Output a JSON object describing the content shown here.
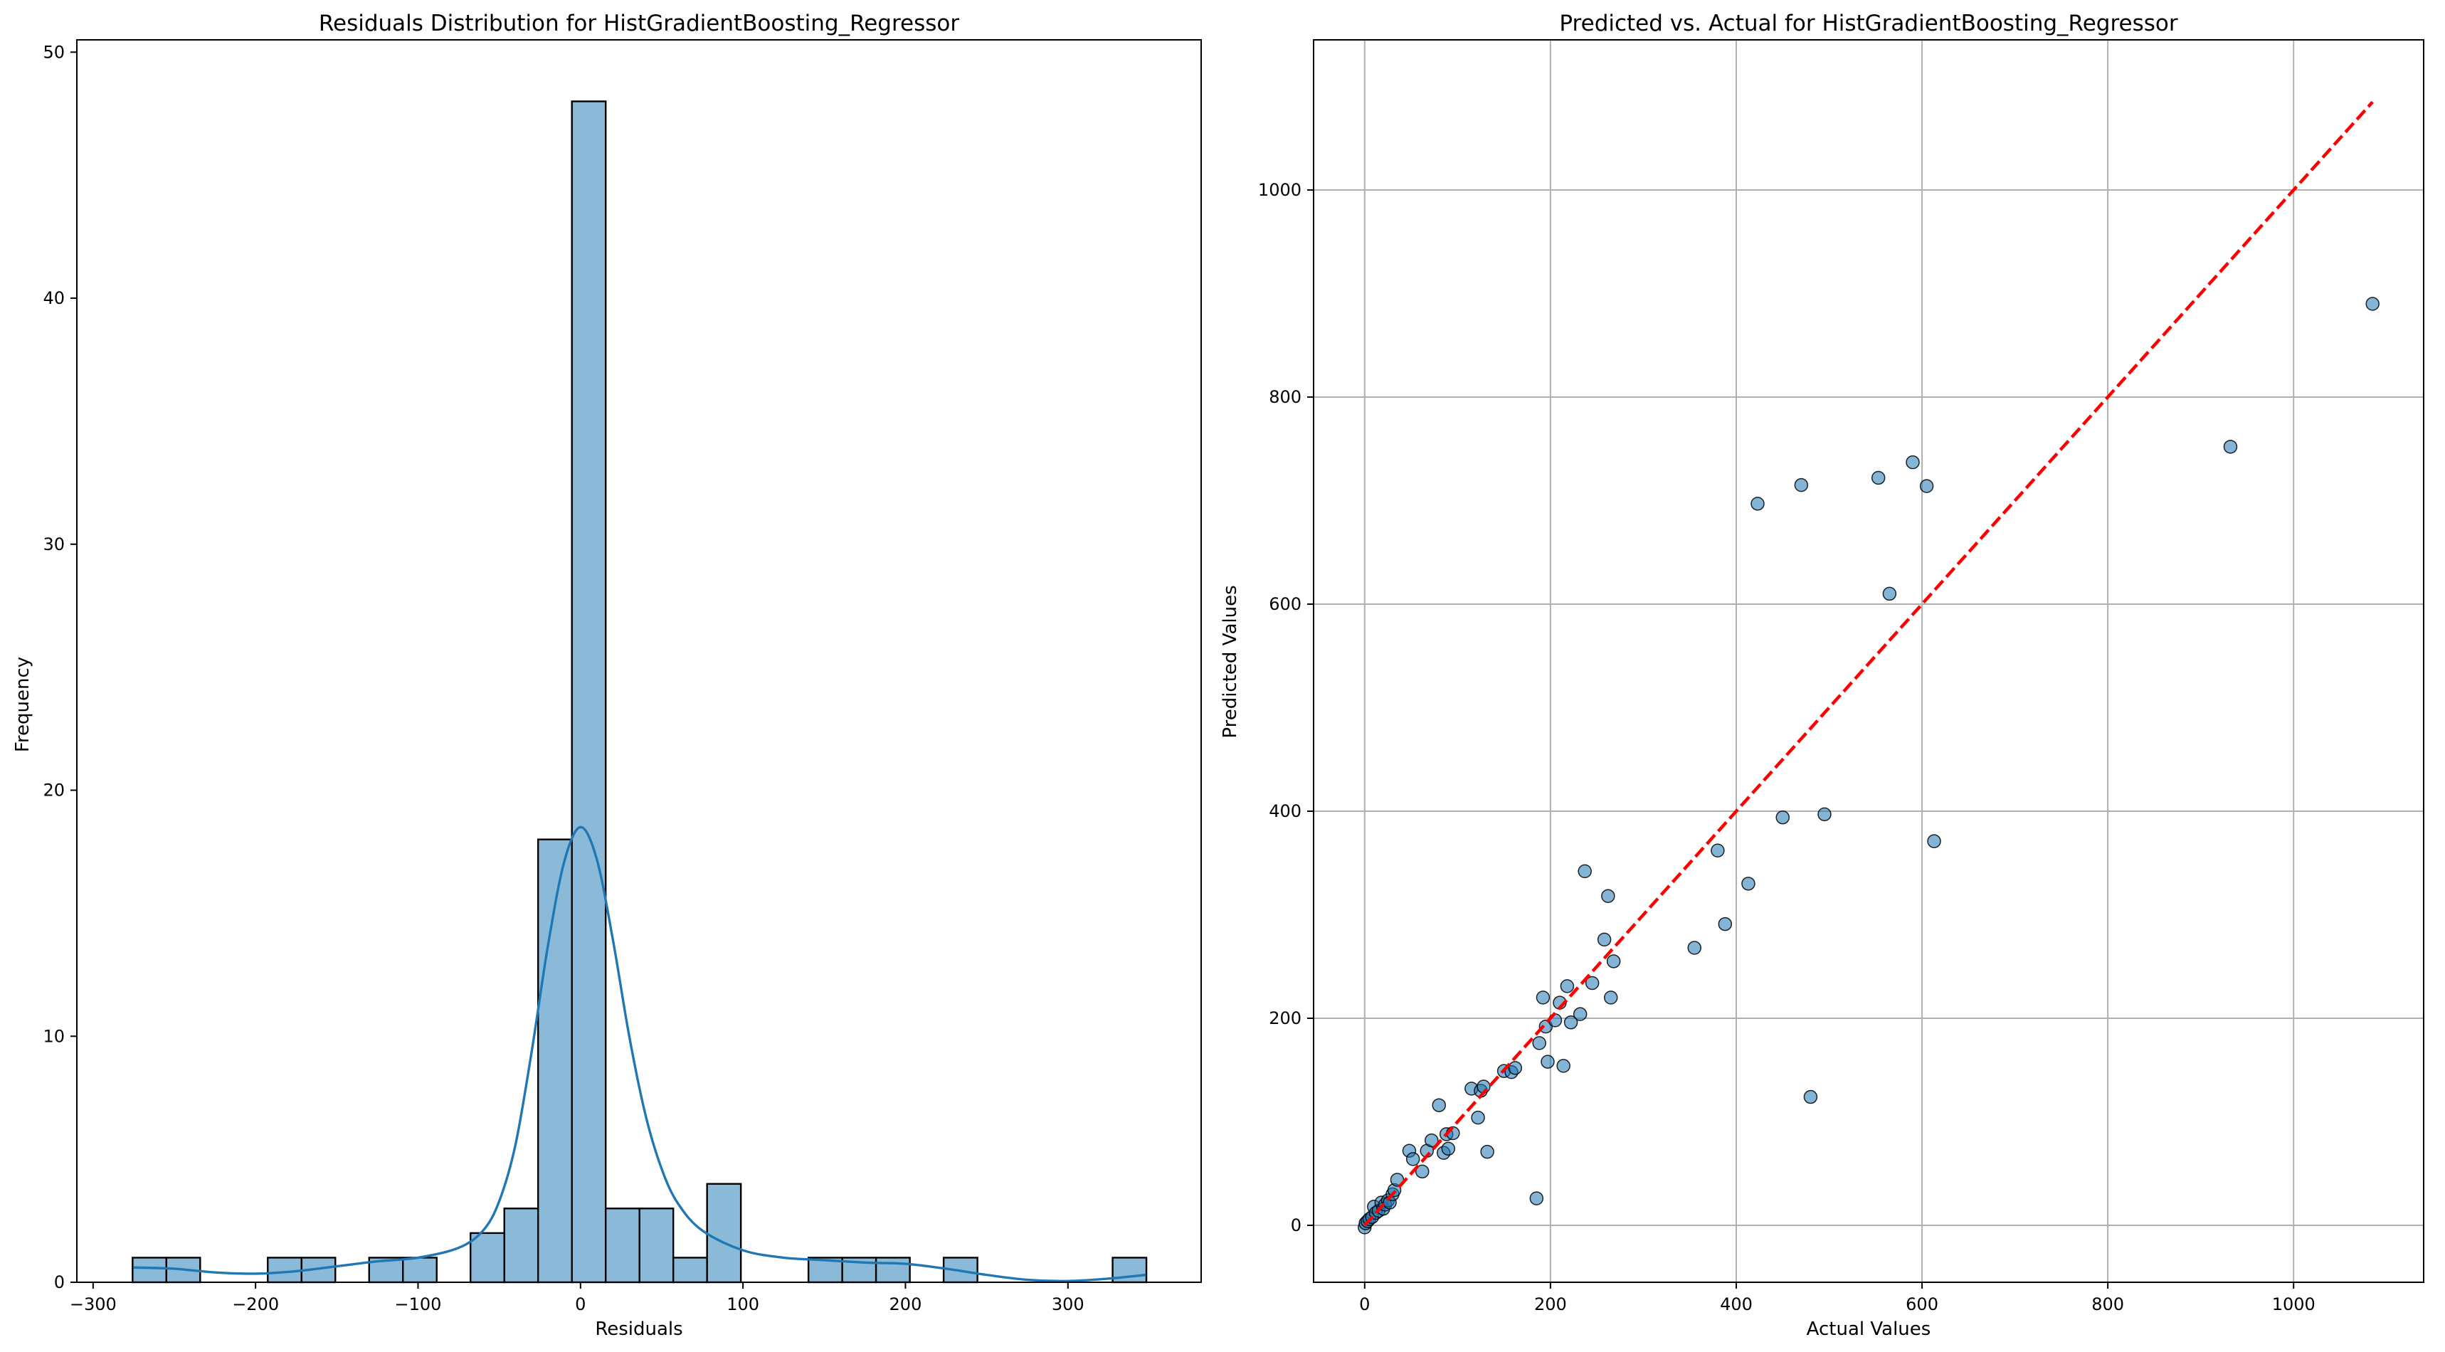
{
  "chart_data": [
    {
      "type": "bar",
      "title": "Residuals Distribution for HistGradientBoosting_Regressor",
      "xlabel": "Residuals",
      "ylabel": "Frequency",
      "xlim": [
        -310,
        382
      ],
      "ylim": [
        0,
        50.5
      ],
      "x_ticks": [
        -300,
        -200,
        -100,
        0,
        100,
        200,
        300
      ],
      "y_ticks": [
        0,
        10,
        20,
        30,
        40,
        50
      ],
      "grid": false,
      "bin_edges": [
        -275.7,
        -254.9,
        -234.1,
        -213.3,
        -192.5,
        -171.7,
        -150.9,
        -130.1,
        -109.3,
        -88.5,
        -67.7,
        -46.9,
        -26.1,
        -5.3,
        15.5,
        36.3,
        57.1,
        77.9,
        98.7,
        119.5,
        140.3,
        161.1,
        181.9,
        202.7,
        223.5,
        244.3,
        265.1,
        285.9,
        306.7,
        327.5,
        348.3
      ],
      "counts": [
        1,
        1,
        0,
        0,
        1,
        1,
        0,
        1,
        1,
        0,
        2,
        3,
        18,
        48,
        3,
        3,
        1,
        4,
        0,
        0,
        1,
        1,
        1,
        0,
        1,
        0,
        0,
        0,
        0,
        1
      ],
      "bar_color": "#8bbad9",
      "kde": {
        "color": "#1f77b4",
        "x": [
          -275,
          -250,
          -225,
          -200,
          -175,
          -150,
          -125,
          -100,
          -75,
          -60,
          -50,
          -40,
          -30,
          -20,
          -10,
          0,
          10,
          20,
          30,
          40,
          50,
          60,
          75,
          100,
          125,
          150,
          175,
          200,
          225,
          250,
          275,
          300,
          325,
          348
        ],
        "y": [
          0.6,
          0.55,
          0.4,
          0.35,
          0.45,
          0.65,
          0.85,
          1.0,
          1.4,
          2.1,
          3.3,
          5.6,
          9.4,
          13.7,
          17.1,
          18.5,
          17.2,
          13.9,
          10.0,
          6.8,
          4.6,
          3.2,
          2.1,
          1.3,
          1.0,
          0.9,
          0.8,
          0.75,
          0.55,
          0.3,
          0.1,
          0.05,
          0.15,
          0.3
        ]
      }
    },
    {
      "type": "scatter",
      "title": "Predicted vs. Actual for HistGradientBoosting_Regressor",
      "xlabel": "Actual Values",
      "ylabel": "Predicted Values",
      "xlim": [
        -55,
        1140
      ],
      "ylim": [
        -55,
        1145
      ],
      "x_ticks": [
        0,
        200,
        400,
        600,
        800,
        1000
      ],
      "y_ticks": [
        0,
        200,
        400,
        600,
        800,
        1000
      ],
      "grid": true,
      "point_color": "#1f77b4",
      "reference_line": {
        "x": [
          0,
          1085
        ],
        "y": [
          0,
          1085
        ],
        "color": "#ff0000",
        "style": "dashed"
      },
      "points": [
        [
          0,
          -2
        ],
        [
          1,
          2
        ],
        [
          3,
          4
        ],
        [
          5,
          6
        ],
        [
          8,
          8
        ],
        [
          10,
          18
        ],
        [
          12,
          12
        ],
        [
          15,
          14
        ],
        [
          18,
          22
        ],
        [
          20,
          16
        ],
        [
          22,
          20
        ],
        [
          25,
          24
        ],
        [
          27,
          22
        ],
        [
          30,
          30
        ],
        [
          32,
          34
        ],
        [
          35,
          44
        ],
        [
          48,
          72
        ],
        [
          52,
          64
        ],
        [
          62,
          52
        ],
        [
          67,
          72
        ],
        [
          72,
          82
        ],
        [
          80,
          116
        ],
        [
          85,
          70
        ],
        [
          88,
          88
        ],
        [
          90,
          74
        ],
        [
          95,
          89
        ],
        [
          115,
          132
        ],
        [
          122,
          104
        ],
        [
          125,
          130
        ],
        [
          128,
          134
        ],
        [
          132,
          71
        ],
        [
          150,
          149
        ],
        [
          158,
          148
        ],
        [
          162,
          152
        ],
        [
          185,
          26
        ],
        [
          188,
          176
        ],
        [
          192,
          220
        ],
        [
          195,
          192
        ],
        [
          197,
          158
        ],
        [
          205,
          198
        ],
        [
          210,
          215
        ],
        [
          214,
          154
        ],
        [
          218,
          231
        ],
        [
          222,
          196
        ],
        [
          232,
          204
        ],
        [
          237,
          342
        ],
        [
          245,
          234
        ],
        [
          258,
          276
        ],
        [
          262,
          318
        ],
        [
          265,
          220
        ],
        [
          268,
          255
        ],
        [
          355,
          268
        ],
        [
          380,
          362
        ],
        [
          388,
          291
        ],
        [
          413,
          330
        ],
        [
          423,
          697
        ],
        [
          450,
          394
        ],
        [
          470,
          715
        ],
        [
          480,
          124
        ],
        [
          495,
          397
        ],
        [
          553,
          722
        ],
        [
          565,
          610
        ],
        [
          590,
          737
        ],
        [
          605,
          714
        ],
        [
          613,
          371
        ],
        [
          932,
          752
        ],
        [
          1085,
          890
        ]
      ]
    }
  ]
}
